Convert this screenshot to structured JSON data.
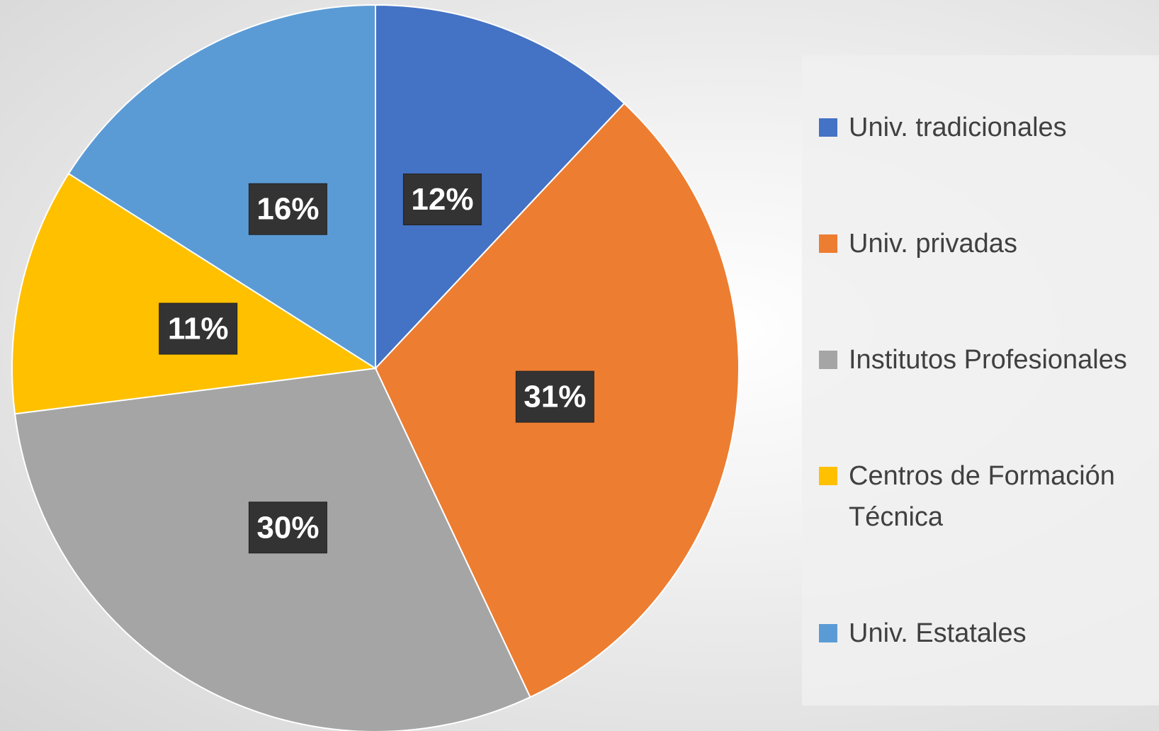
{
  "chart_data": {
    "type": "pie",
    "categories": [
      "Univ. tradicionales",
      "Univ. privadas",
      "Institutos Profesionales",
      "Centros de Formación Técnica",
      "Univ. Estatales"
    ],
    "values": [
      12,
      31,
      30,
      11,
      16
    ],
    "value_labels": [
      "12%",
      "31%",
      "30%",
      "11%",
      "16%"
    ],
    "colors": [
      "#4472c4",
      "#ed7d31",
      "#a5a5a5",
      "#ffc000",
      "#5b9bd5"
    ],
    "legend": "right"
  }
}
